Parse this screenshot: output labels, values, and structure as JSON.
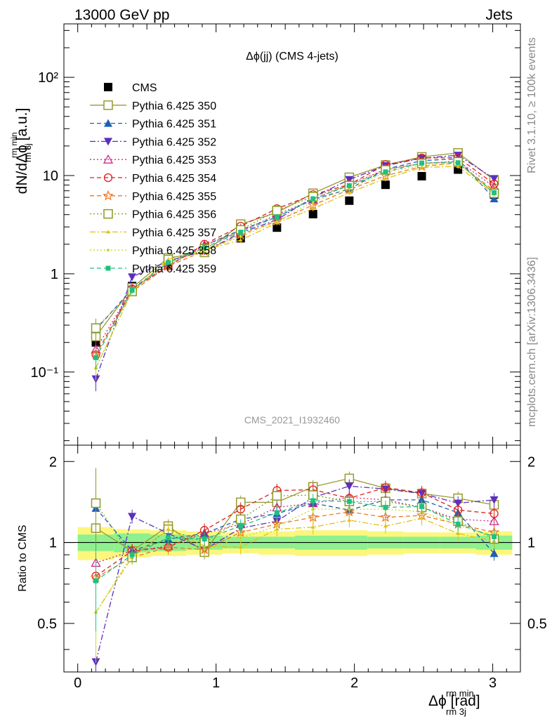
{
  "header": {
    "energy_label": "13000 GeV pp",
    "group_label": "Jets",
    "side_label_rivet": "Rivet 3.1.10, ≥ 100k events",
    "side_label_site": "mcplots.cern.ch [arXiv:1306.3436]",
    "analysis_id": "CMS_2021_I1932460"
  },
  "chart_data": [
    {
      "type": "line",
      "title": "Δϕ(jj) (CMS 4-jets)",
      "ylabel": "dN/dΔϕ [a.u.]",
      "ylabel_super": "rm min",
      "ylabel_sub": "rm 3j",
      "xlabel": "Δϕ [rad]",
      "xlabel_super": "rm min",
      "xlabel_sub": "rm 3j",
      "x": [
        0.131,
        0.393,
        0.654,
        0.916,
        1.178,
        1.44,
        1.701,
        1.963,
        2.225,
        2.487,
        2.749,
        3.01
      ],
      "xlim": [
        -0.1,
        3.2
      ],
      "ylim": [
        0.018,
        350
      ],
      "yscale": "log",
      "xticks": [
        0,
        1,
        2,
        3
      ],
      "yticks": [
        {
          "value": 0.1,
          "label": "10⁻¹"
        },
        {
          "value": 1,
          "label": "1"
        },
        {
          "value": 10,
          "label": "10"
        },
        {
          "value": 100,
          "label": "10²"
        }
      ],
      "legend_position": "top-left",
      "series": [
        {
          "name": "CMS",
          "color": "#000000",
          "marker": "square-filled",
          "line": "none",
          "values": [
            0.2,
            0.75,
            1.25,
            1.8,
            2.3,
            2.95,
            4.05,
            5.55,
            8.05,
            9.85,
            11.5,
            6.4
          ]
        },
        {
          "name": "Pythia 6.425 350",
          "color": "#999933",
          "marker": "square-open",
          "line": "solid",
          "values": [
            0.23,
            0.72,
            1.45,
            1.65,
            3.2,
            4.2,
            6.6,
            9.6,
            12.8,
            15.5,
            17.0,
            9.0
          ]
        },
        {
          "name": "Pythia 6.425 351",
          "color": "#1f5fb4",
          "marker": "triangle-up-filled",
          "line": "dashed",
          "values": [
            0.27,
            0.7,
            1.3,
            1.95,
            2.8,
            3.8,
            5.7,
            7.3,
            11.6,
            14.2,
            14.8,
            5.8
          ]
        },
        {
          "name": "Pythia 6.425 352",
          "color": "#5b2fbe",
          "marker": "triangle-down-filled",
          "line": "dashdot",
          "values": [
            0.085,
            0.93,
            1.35,
            1.7,
            2.6,
            3.55,
            6.0,
            9.1,
            12.6,
            15.0,
            16.1,
            9.3
          ]
        },
        {
          "name": "Pythia 6.425 353",
          "color": "#cc2a8a",
          "marker": "triangle-up-open",
          "line": "dotted",
          "values": [
            0.17,
            0.7,
            1.2,
            1.95,
            2.7,
            4.0,
            5.7,
            8.1,
            11.6,
            13.3,
            14.0,
            7.7
          ]
        },
        {
          "name": "Pythia 6.425 354",
          "color": "#dd1f1f",
          "marker": "circle-open",
          "line": "dashed",
          "values": [
            0.15,
            0.7,
            1.2,
            2.0,
            3.05,
            4.6,
            6.4,
            8.1,
            12.9,
            15.1,
            15.2,
            8.2
          ]
        },
        {
          "name": "Pythia 6.425 355",
          "color": "#ee7722",
          "marker": "star-open",
          "line": "dashed",
          "values": [
            0.15,
            0.66,
            1.2,
            1.7,
            2.5,
            3.45,
            5.0,
            7.2,
            9.95,
            12.4,
            13.4,
            7.0
          ]
        },
        {
          "name": "Pythia 6.425 356",
          "color": "#8a9a22",
          "marker": "square-open",
          "line": "dotted",
          "values": [
            0.28,
            0.66,
            1.4,
            1.8,
            2.8,
            4.4,
            6.1,
            7.9,
            11.4,
            13.3,
            13.8,
            6.6
          ]
        },
        {
          "name": "Pythia 6.425 357",
          "color": "#e0c010",
          "marker": "tri-small",
          "line": "dashdot",
          "values": [
            0.11,
            0.66,
            1.4,
            1.75,
            2.2,
            3.3,
            4.6,
            6.7,
            9.3,
            12.1,
            12.4,
            6.5
          ]
        },
        {
          "name": "Pythia 6.425 358",
          "color": "#c8d632",
          "marker": "dot",
          "line": "dotted",
          "values": [
            0.11,
            0.68,
            1.3,
            1.7,
            2.4,
            3.4,
            5.4,
            7.4,
            10.7,
            12.8,
            13.3,
            6.7
          ]
        },
        {
          "name": "Pythia 6.425 359",
          "color": "#20c080",
          "marker": "square-small-filled",
          "line": "dashed",
          "values": [
            0.14,
            0.68,
            1.3,
            1.85,
            2.65,
            3.8,
            5.8,
            7.9,
            10.9,
            13.4,
            13.5,
            6.7
          ]
        }
      ]
    },
    {
      "type": "line",
      "ylabel": "Ratio to CMS",
      "ylim": [
        0.33,
        2.3
      ],
      "yscale": "log",
      "yticks": [
        {
          "value": 0.5,
          "label": "0.5"
        },
        {
          "value": 1,
          "label": "1"
        },
        {
          "value": 2,
          "label": "2"
        }
      ],
      "reference_line": 1,
      "band_inner": [
        0.07,
        0.08,
        0.07,
        0.06,
        0.05,
        0.05,
        0.06,
        0.06,
        0.05,
        0.05,
        0.05,
        0.06
      ],
      "band_outer": [
        0.14,
        0.12,
        0.11,
        0.1,
        0.09,
        0.1,
        0.11,
        0.11,
        0.1,
        0.09,
        0.09,
        0.1
      ],
      "series": [
        {
          "name": "Pythia 6.425 350",
          "values": [
            1.13,
            0.93,
            1.15,
            0.92,
            1.41,
            1.41,
            1.61,
            1.73,
            1.59,
            1.52,
            1.46,
            1.38
          ]
        },
        {
          "name": "Pythia 6.425 351",
          "values": [
            1.34,
            0.93,
            1.03,
            1.08,
            1.22,
            1.28,
            1.4,
            1.32,
            1.44,
            1.44,
            1.29,
            0.91
          ]
        },
        {
          "name": "Pythia 6.425 352",
          "values": [
            0.36,
            1.25,
            1.08,
            0.94,
            1.13,
            1.2,
            1.47,
            1.62,
            1.58,
            1.52,
            1.4,
            1.44
          ]
        },
        {
          "name": "Pythia 6.425 353",
          "values": [
            0.84,
            0.93,
            0.97,
            1.08,
            1.17,
            1.35,
            1.4,
            1.47,
            1.44,
            1.35,
            1.22,
            1.2
          ]
        },
        {
          "name": "Pythia 6.425 354",
          "values": [
            0.75,
            0.93,
            0.96,
            1.11,
            1.33,
            1.56,
            1.57,
            1.46,
            1.6,
            1.53,
            1.32,
            1.28
          ]
        },
        {
          "name": "Pythia 6.425 355",
          "values": [
            0.74,
            0.88,
            0.96,
            0.94,
            1.09,
            1.17,
            1.24,
            1.3,
            1.24,
            1.26,
            1.17,
            1.09
          ]
        },
        {
          "name": "Pythia 6.425 356",
          "values": [
            1.4,
            0.88,
            1.12,
            1.0,
            1.22,
            1.49,
            1.5,
            1.42,
            1.42,
            1.35,
            1.2,
            1.03
          ]
        },
        {
          "name": "Pythia 6.425 357",
          "values": [
            0.55,
            0.88,
            1.12,
            0.97,
            0.96,
            1.12,
            1.14,
            1.21,
            1.15,
            1.23,
            1.08,
            1.01
          ]
        },
        {
          "name": "Pythia 6.425 358",
          "values": [
            0.55,
            0.9,
            1.04,
            0.94,
            1.04,
            1.15,
            1.33,
            1.33,
            1.33,
            1.3,
            1.16,
            1.05
          ]
        },
        {
          "name": "Pythia 6.425 359",
          "values": [
            0.72,
            0.9,
            1.04,
            1.03,
            1.15,
            1.29,
            1.43,
            1.42,
            1.35,
            1.36,
            1.17,
            1.05
          ]
        }
      ]
    }
  ]
}
